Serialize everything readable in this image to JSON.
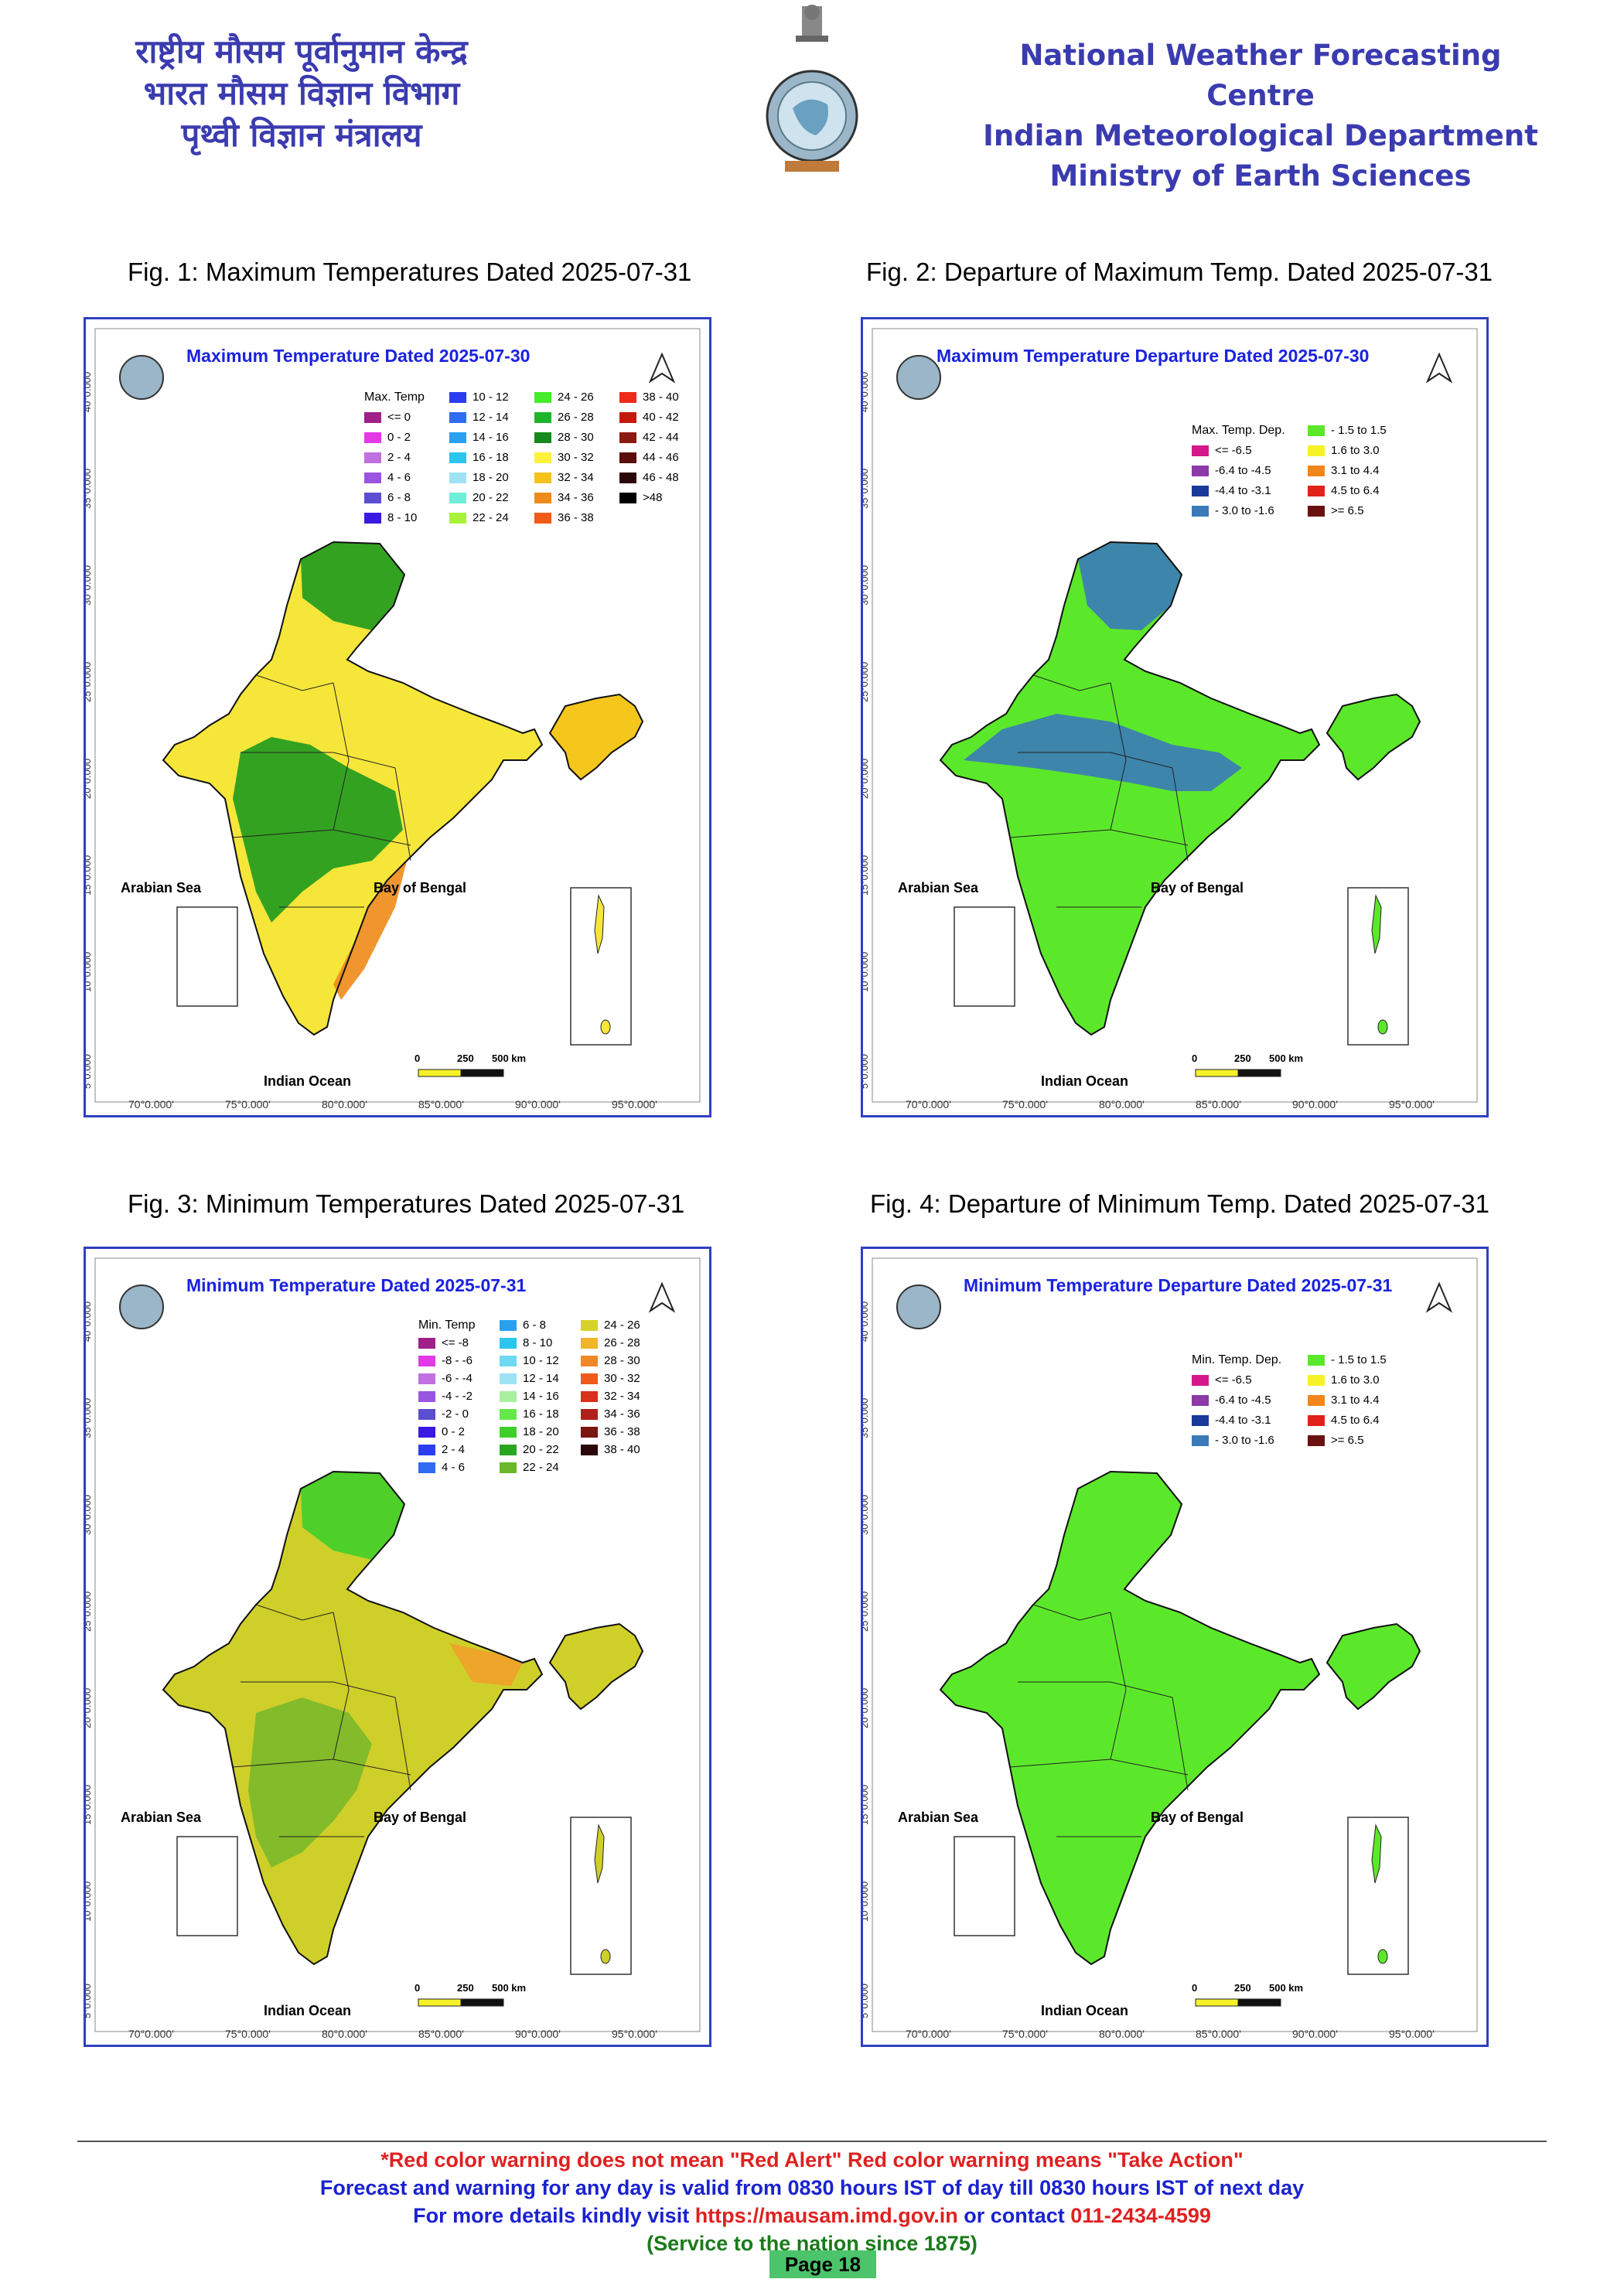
{
  "header": {
    "hindi_lines": [
      "राष्ट्रीय मौसम पूर्वानुमान केन्द्र",
      "भारत मौसम विज्ञान विभाग",
      "पृथ्वी विज्ञान मंत्रालय"
    ],
    "english_lines": [
      "National Weather Forecasting Centre",
      "Indian Meteorological Department",
      "Ministry of Earth Sciences"
    ]
  },
  "figures": [
    {
      "caption": "Fig. 1: Maximum Temperatures Dated 2025-07-31",
      "map_title": "Maximum Temperature Dated 2025-07-30",
      "legend_title": "Max. Temp",
      "legend": [
        {
          "label": "<= 0",
          "color": "#a0208a"
        },
        {
          "label": "0 - 2",
          "color": "#e23be6"
        },
        {
          "label": "2 - 4",
          "color": "#c070e0"
        },
        {
          "label": "4 - 6",
          "color": "#9a55e0"
        },
        {
          "label": "6 - 8",
          "color": "#5b4ed0"
        },
        {
          "label": "8 - 10",
          "color": "#3a1ae0"
        },
        {
          "label": "10 - 12",
          "color": "#2b3df0"
        },
        {
          "label": "12 - 14",
          "color": "#2f6cf2"
        },
        {
          "label": "14 - 16",
          "color": "#29a0f0"
        },
        {
          "label": "16 - 18",
          "color": "#2bc5ee"
        },
        {
          "label": "18 - 20",
          "color": "#9ee2f4"
        },
        {
          "label": "20 - 22",
          "color": "#6fefd8"
        },
        {
          "label": "22 - 24",
          "color": "#a8f23a"
        },
        {
          "label": "24 - 26",
          "color": "#44ee28"
        },
        {
          "label": "26 - 28",
          "color": "#1fb52b"
        },
        {
          "label": "28 - 30",
          "color": "#188a1b"
        },
        {
          "label": "30 - 32",
          "color": "#fff23a"
        },
        {
          "label": "32 - 34",
          "color": "#f5c21a"
        },
        {
          "label": "34 - 36",
          "color": "#f08a18"
        },
        {
          "label": "36 - 38",
          "color": "#f25a18"
        },
        {
          "label": "38 - 40",
          "color": "#ee2a1a"
        },
        {
          "label": "40 - 42",
          "color": "#c21a0c"
        },
        {
          "label": "42 - 44",
          "color": "#8b1a12"
        },
        {
          "label": "44 - 46",
          "color": "#5a0c08"
        },
        {
          "label": "46 - 48",
          "color": "#2a0808"
        },
        {
          "label": ">48",
          "color": "#000000"
        }
      ],
      "legend_columns": 4
    },
    {
      "caption": "Fig. 2: Departure of Maximum Temp. Dated 2025-07-31",
      "map_title": "Maximum Temperature Departure Dated 2025-07-30",
      "legend_title": "Max. Temp. Dep.",
      "legend": [
        {
          "label": "<= -6.5",
          "color": "#d4188c"
        },
        {
          "label": "-6.4 to -4.5",
          "color": "#8c3aa8"
        },
        {
          "label": "-4.4 to -3.1",
          "color": "#1a3a9a"
        },
        {
          "label": "- 3.0 to -1.6",
          "color": "#3a7ab8"
        },
        {
          "label": "- 1.5 to 1.5",
          "color": "#5ce82a"
        },
        {
          "label": "1.6 to  3.0",
          "color": "#f6f22a"
        },
        {
          "label": "3.1 to 4.4",
          "color": "#f2861a"
        },
        {
          "label": "4.5 to 6.4",
          "color": "#e0221a"
        },
        {
          "label": ">= 6.5",
          "color": "#6a1010"
        }
      ],
      "legend_columns": 2
    },
    {
      "caption": "Fig. 3: Minimum Temperatures Dated 2025-07-31",
      "map_title": "Minimum Temperature Dated 2025-07-31",
      "legend_title": "Min. Temp",
      "legend": [
        {
          "label": "<= -8",
          "color": "#a0208a"
        },
        {
          "label": "-8 - -6",
          "color": "#e23be6"
        },
        {
          "label": "-6 - -4",
          "color": "#c070e0"
        },
        {
          "label": "-4 - -2",
          "color": "#9a55e0"
        },
        {
          "label": "-2 - 0",
          "color": "#5b4ed0"
        },
        {
          "label": "0 - 2",
          "color": "#3a1ae0"
        },
        {
          "label": "2 - 4",
          "color": "#2b3df0"
        },
        {
          "label": "4 - 6",
          "color": "#2f6cf2"
        },
        {
          "label": "6 - 8",
          "color": "#29a0f0"
        },
        {
          "label": "8 - 10",
          "color": "#2bc5ee"
        },
        {
          "label": "10 - 12",
          "color": "#6fd8f2"
        },
        {
          "label": "12 - 14",
          "color": "#9ee2f4"
        },
        {
          "label": "14 - 16",
          "color": "#a8f0a0"
        },
        {
          "label": "16 - 18",
          "color": "#66e84a"
        },
        {
          "label": "18 - 20",
          "color": "#3fce2a"
        },
        {
          "label": "20 - 22",
          "color": "#2aa520"
        },
        {
          "label": "22 - 24",
          "color": "#6ab82a"
        },
        {
          "label": "24 - 26",
          "color": "#d7d22a"
        },
        {
          "label": "26 - 28",
          "color": "#f0b52a"
        },
        {
          "label": "28 - 30",
          "color": "#f0882a"
        },
        {
          "label": "30 - 32",
          "color": "#f05a1a"
        },
        {
          "label": "32 - 34",
          "color": "#d8301a"
        },
        {
          "label": "34 - 36",
          "color": "#b0201a"
        },
        {
          "label": "36 - 38",
          "color": "#7a1410"
        },
        {
          "label": "38 - 40",
          "color": "#2a0808"
        }
      ],
      "legend_columns": 3
    },
    {
      "caption": "Fig. 4: Departure of Minimum Temp. Dated 2025-07-31",
      "map_title": "Minimum Temperature Departure Dated 2025-07-31",
      "legend_title": "Min. Temp. Dep.",
      "legend": [
        {
          "label": "<= -6.5",
          "color": "#d4188c"
        },
        {
          "label": "-6.4 to -4.5",
          "color": "#8c3aa8"
        },
        {
          "label": "-4.4 to -3.1",
          "color": "#1a3a9a"
        },
        {
          "label": "- 3.0 to -1.6",
          "color": "#3a7ab8"
        },
        {
          "label": "- 1.5 to 1.5",
          "color": "#5ce82a"
        },
        {
          "label": "1.6 to  3.0",
          "color": "#f6f22a"
        },
        {
          "label": "3.1 to 4.4",
          "color": "#f2861a"
        },
        {
          "label": "4.5 to 6.4",
          "color": "#e0221a"
        },
        {
          "label": ">= 6.5",
          "color": "#6a1010"
        }
      ],
      "legend_columns": 2
    }
  ],
  "map_labels": {
    "arabian_sea": "Arabian Sea",
    "bay_of_bengal": "Bay of Bengal",
    "indian_ocean": "Indian Ocean",
    "scale": [
      "0",
      "250",
      "500 km"
    ],
    "longitudes": [
      "70°0.000'",
      "75°0.000'",
      "80°0.000'",
      "85°0.000'",
      "90°0.000'",
      "95°0.000'"
    ],
    "latitudes": [
      "40°0.000'",
      "35°0.000'",
      "30°0.000'",
      "25°0.000'",
      "20°0.000'",
      "15°0.000'",
      "10°0.000'",
      "5°0.000'"
    ]
  },
  "colors": {
    "fig1_base": "#f6e63a",
    "fig1_zone": "#1f9a1f",
    "fig1_coast": "#f08a18",
    "fig2_base": "#5ce82a",
    "fig2_zone": "#3a7ab8",
    "fig3_base": "#cfcf2a",
    "fig3_zone": "#7ab82a",
    "fig3_hot": "#f0a02a",
    "fig4_base": "#5ce82a"
  },
  "footer": {
    "line1": "*Red color warning does not mean \"Red Alert\" Red color warning means \"Take Action\"",
    "line2": "Forecast and warning for any day is valid from 0830 hours IST of day till 0830 hours IST of next day",
    "line3_prefix": "For more details kindly visit ",
    "line3_url": "https://mausam.imd.gov.in",
    "line3_mid": " or contact ",
    "line3_phone": "011-2434-4599",
    "line4": "(Service to the nation since 1875)",
    "page": "Page 18"
  }
}
